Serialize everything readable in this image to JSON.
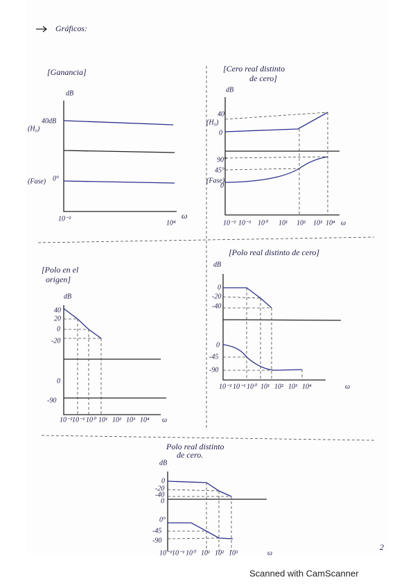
{
  "header": {
    "title": "Gráficos:"
  },
  "panels": [
    {
      "title": "[Ganancia]",
      "y_labels": [
        "dB",
        "40dB",
        "(H₀)",
        "(Fase)",
        "0°"
      ],
      "x_labels": [
        "10⁻²",
        "10⁴",
        "ω"
      ]
    },
    {
      "title": "[Cero real distinto",
      "title2": "de cero]",
      "y_labels": [
        "dB",
        "40",
        "(H₀)",
        "0",
        "90°",
        "45°",
        "(Fase)",
        "0"
      ],
      "x_labels": [
        "10⁻²",
        "10⁻¹",
        "10⁰",
        "10¹",
        "10²",
        "10³",
        "10⁴",
        "ω"
      ]
    },
    {
      "title": "[Polo en el",
      "title2": "origen]",
      "y_labels": [
        "dB",
        "40",
        "20",
        "0",
        "-20",
        "0",
        "-90"
      ],
      "x_labels": [
        "10⁻²",
        "10⁻¹",
        "10⁰",
        "10¹",
        "10²",
        "10³",
        "10⁴",
        "ω"
      ]
    },
    {
      "title": "[Polo real distinto de cero]",
      "y_labels": [
        "dB",
        "0",
        "-20",
        "-40",
        "0",
        "-45",
        "-90"
      ],
      "x_labels": [
        "10⁻²",
        "10⁻¹",
        "10⁰",
        "10¹",
        "10²",
        "10³",
        "10⁴",
        "ω"
      ]
    },
    {
      "title": "Polo real distinto",
      "title2": "de cero.",
      "y_labels": [
        "dB",
        "0",
        "-20",
        "-40",
        "0",
        "0°",
        "-45",
        "-90"
      ],
      "x_labels": [
        "10⁻²",
        "10⁻¹",
        "10⁰",
        "10¹",
        "10²",
        "10³",
        "ω"
      ]
    }
  ],
  "page_number": "2",
  "footer": "Scanned with CamScanner"
}
